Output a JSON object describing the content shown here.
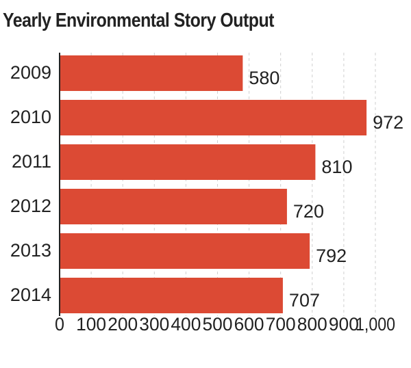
{
  "chart_data": {
    "type": "bar",
    "orientation": "horizontal",
    "title": "Yearly Environmental Story Output",
    "categories": [
      "2009",
      "2010",
      "2011",
      "2012",
      "2013",
      "2014"
    ],
    "values": [
      580,
      972,
      810,
      720,
      792,
      707
    ],
    "value_labels": [
      "580",
      "972",
      "810",
      "720",
      "792",
      "707"
    ],
    "xlim": [
      0,
      1000
    ],
    "xticks": [
      0,
      100,
      200,
      300,
      400,
      500,
      600,
      700,
      800,
      900,
      1000
    ],
    "xtick_labels": [
      "0",
      "100",
      "200",
      "300",
      "400",
      "500",
      "600",
      "700",
      "800",
      "900",
      "1,000"
    ],
    "grid": "vertical-dashed",
    "bar_color": "#dc4a34"
  }
}
